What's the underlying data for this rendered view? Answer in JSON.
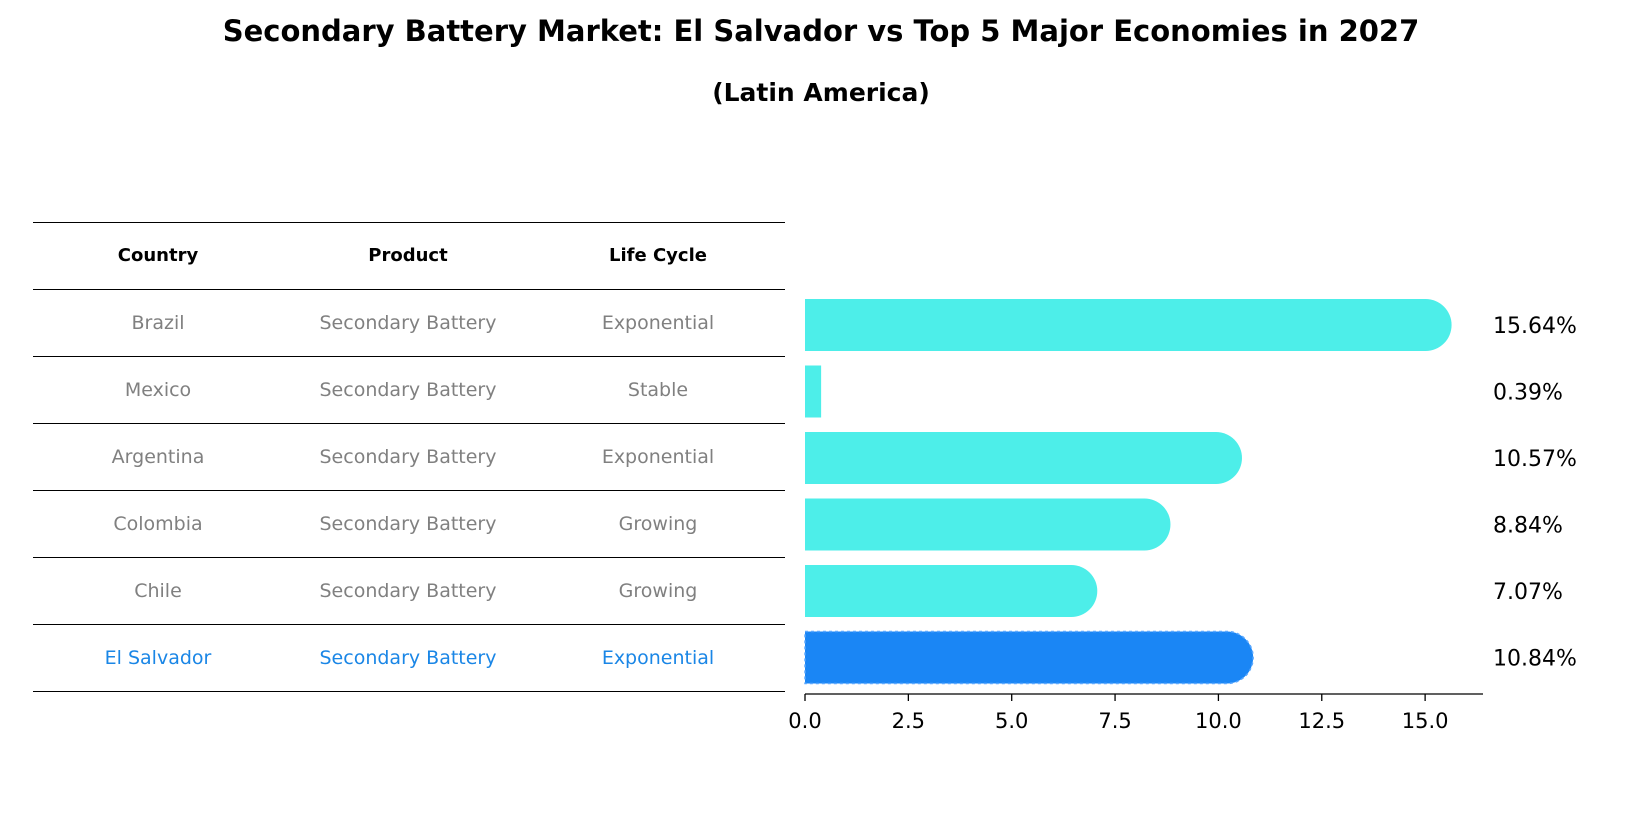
{
  "title": "Secondary Battery Market: El Salvador vs Top 5 Major Economies in 2027",
  "subtitle": "(Latin America)",
  "table": {
    "headers": [
      "Country",
      "Product",
      "Life Cycle"
    ],
    "rows": [
      [
        "Brazil",
        "Secondary Battery",
        "Exponential"
      ],
      [
        "Mexico",
        "Secondary Battery",
        "Stable"
      ],
      [
        "Argentina",
        "Secondary Battery",
        "Exponential"
      ],
      [
        "Colombia",
        "Secondary Battery",
        "Growing"
      ],
      [
        "Chile",
        "Secondary Battery",
        "Growing"
      ],
      [
        "El Salvador",
        "Secondary Battery",
        "Exponential"
      ]
    ]
  },
  "colors": {
    "bar": "#4deee9",
    "highlight": "#1a86f5",
    "highlight_text": "#1a86e6"
  },
  "chart_data": {
    "type": "bar",
    "orientation": "horizontal",
    "categories": [
      "Brazil",
      "Mexico",
      "Argentina",
      "Colombia",
      "Chile",
      "El Salvador"
    ],
    "values": [
      15.64,
      0.39,
      10.57,
      8.84,
      7.07,
      10.84
    ],
    "value_labels": [
      "15.64%",
      "0.39%",
      "10.57%",
      "8.84%",
      "7.07%",
      "10.84%"
    ],
    "highlight": "El Salvador",
    "xlim": [
      0,
      16.4
    ],
    "xticks": [
      0.0,
      2.5,
      5.0,
      7.5,
      10.0,
      12.5,
      15.0
    ],
    "xtick_labels": [
      "0.0",
      "2.5",
      "5.0",
      "7.5",
      "10.0",
      "12.5",
      "15.0"
    ],
    "xlabel": "",
    "ylabel": ""
  }
}
